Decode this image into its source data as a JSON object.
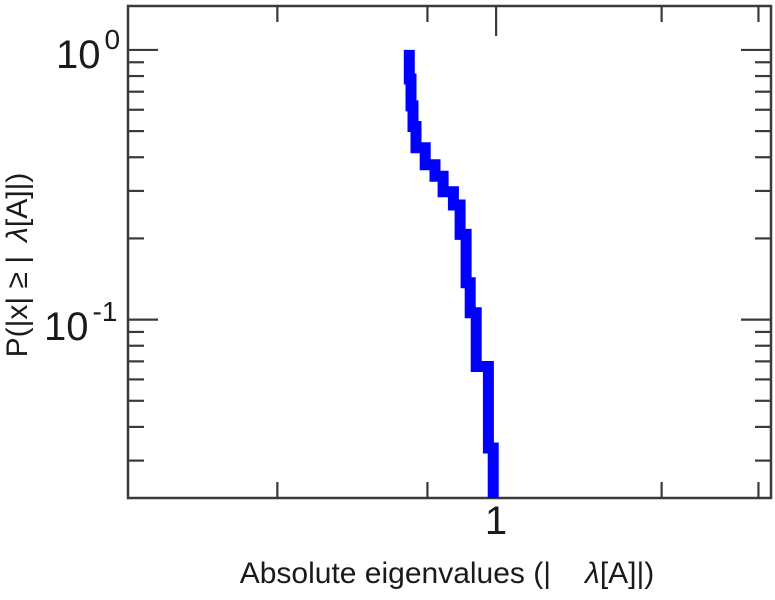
{
  "chart_data": {
    "type": "line",
    "subtype": "staircase-ccdf",
    "title": "",
    "xlabel_parts": {
      "prefix": "Absolute eigenvalues (|",
      "lambda": "λ",
      "suffix": "[A]|)"
    },
    "ylabel_parts": {
      "prefix": "P(|x| ≥ |",
      "lambda": "λ",
      "suffix": "[A]|)"
    },
    "x_scale": "log",
    "y_scale": "log",
    "xlim": [
      0.214,
      3.162
    ],
    "ylim": [
      0.0218,
      1.455
    ],
    "grid": false,
    "frame": "box",
    "legend": "none",
    "axis_color": "#3a3a3a",
    "text_color": "#1a1a1a",
    "background": "#ffffff",
    "x_ticks": [
      {
        "value": 0.4,
        "label": "",
        "major": false
      },
      {
        "value": 0.75,
        "label": "",
        "major": false
      },
      {
        "value": 1,
        "label": "1",
        "major": true
      },
      {
        "value": 2,
        "label": "",
        "major": false
      },
      {
        "value": 3,
        "label": "",
        "major": false
      }
    ],
    "y_major_ticks": [
      {
        "value": 1,
        "base": "10",
        "exp": "0"
      },
      {
        "value": 0.1,
        "base": "10",
        "exp": "-1"
      }
    ],
    "y_minor_ticks": [
      0.9,
      0.8,
      0.7,
      0.6,
      0.5,
      0.4,
      0.3,
      0.2,
      0.09,
      0.08,
      0.07,
      0.06,
      0.05,
      0.04,
      0.03
    ],
    "series": [
      {
        "name": "eigenvalue-ccdf",
        "color": "#0000FF",
        "stroke_width": 11,
        "points": [
          [
            0.695,
            1.0
          ],
          [
            0.695,
            0.78
          ],
          [
            0.7,
            0.78
          ],
          [
            0.7,
            0.62
          ],
          [
            0.706,
            0.62
          ],
          [
            0.706,
            0.52
          ],
          [
            0.715,
            0.52
          ],
          [
            0.715,
            0.434
          ],
          [
            0.743,
            0.434
          ],
          [
            0.743,
            0.375
          ],
          [
            0.774,
            0.375
          ],
          [
            0.774,
            0.34
          ],
          [
            0.801,
            0.34
          ],
          [
            0.801,
            0.298
          ],
          [
            0.836,
            0.298
          ],
          [
            0.836,
            0.266
          ],
          [
            0.86,
            0.266
          ],
          [
            0.86,
            0.207
          ],
          [
            0.882,
            0.207
          ],
          [
            0.882,
            0.137
          ],
          [
            0.897,
            0.137
          ],
          [
            0.897,
            0.106
          ],
          [
            0.92,
            0.106
          ],
          [
            0.92,
            0.067
          ],
          [
            0.968,
            0.067
          ],
          [
            0.968,
            0.0334
          ],
          [
            0.988,
            0.0334
          ],
          [
            0.988,
            0.0218
          ]
        ]
      }
    ]
  }
}
